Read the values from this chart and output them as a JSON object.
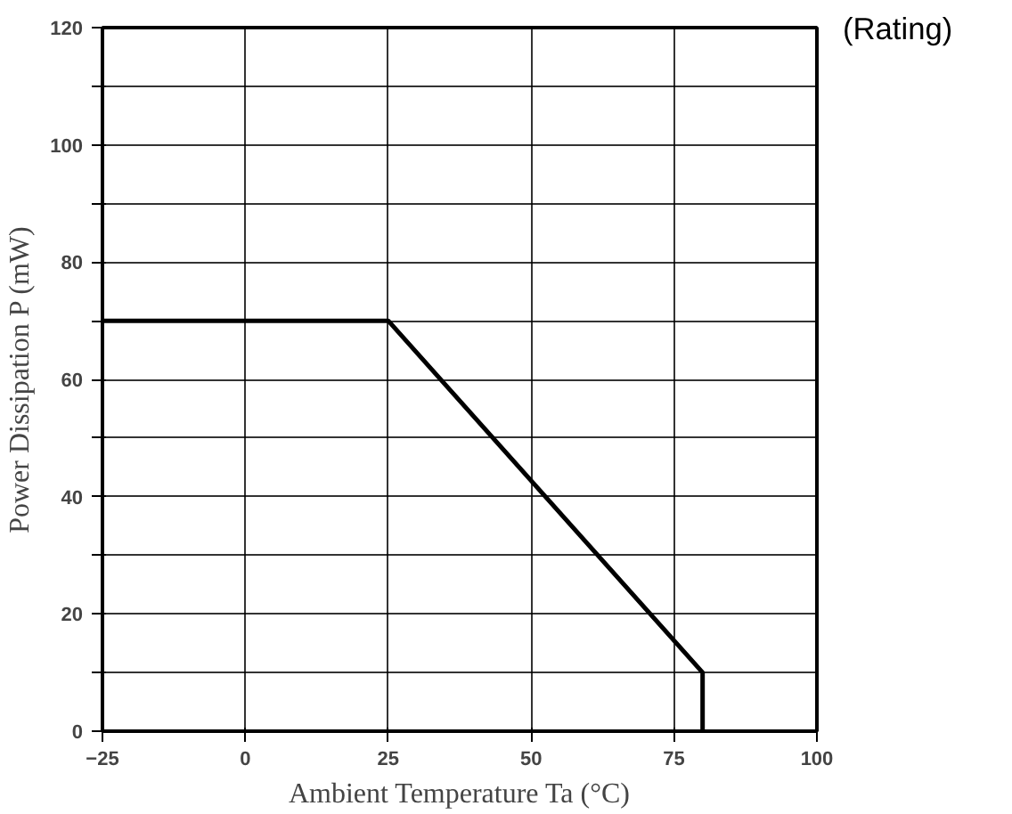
{
  "chart_data": {
    "type": "line",
    "xlabel": "Ambient Temperature Ta (°C)",
    "ylabel": "Power Dissipation P (mW)",
    "annotations": [
      "(Rating)"
    ],
    "x": [
      -25,
      25,
      80,
      80
    ],
    "values": [
      70,
      70,
      10,
      0
    ],
    "color": "#000000",
    "xlim": [
      -25,
      100
    ],
    "ylim": [
      0,
      120
    ],
    "xticks": [
      -25,
      0,
      25,
      50,
      75,
      100
    ],
    "yticks": [
      0,
      {
        "value": 10,
        "label": null
      },
      20,
      {
        "value": 30,
        "label": null
      },
      40,
      {
        "value": 50,
        "label": null
      },
      60,
      {
        "value": 70,
        "label": null
      },
      80,
      {
        "value": 90,
        "label": null
      },
      100,
      {
        "value": 110,
        "label": null
      },
      120
    ],
    "grid": true,
    "marker": "none",
    "line_style": "solid"
  }
}
